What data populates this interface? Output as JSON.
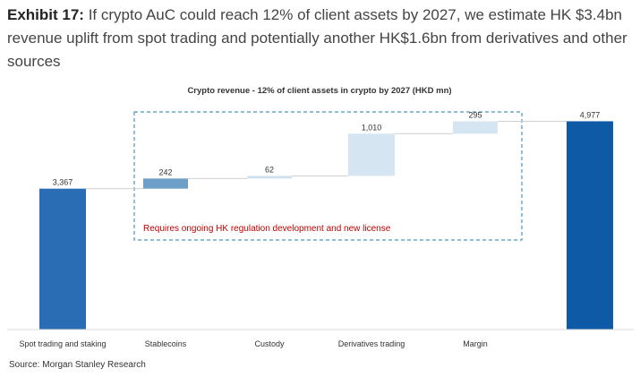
{
  "exhibit": {
    "label": "Exhibit 17:",
    "text": "If crypto AuC could reach 12% of client assets by 2027, we estimate HK $3.4bn revenue uplift from spot trading and potentially another HK$1.6bn from derivatives and other sources"
  },
  "chart_data": {
    "type": "bar",
    "subtype": "waterfall",
    "title": "Crypto revenue - 12% of client assets in crypto by 2027 (HKD mn)",
    "categories": [
      "Spot trading and staking",
      "Stablecoins",
      "Custody",
      "Derivatives trading",
      "Margin",
      ""
    ],
    "value_labels": [
      "3,367",
      "242",
      "62",
      "1,010",
      "295",
      "4,977"
    ],
    "bars": [
      {
        "category": "Spot trading and staking",
        "kind": "total",
        "start": 0,
        "value": 3367,
        "color": "#2a6db5"
      },
      {
        "category": "Stablecoins",
        "kind": "increment",
        "start": 3367,
        "value": 242,
        "color": "#6e9fc9"
      },
      {
        "category": "Custody",
        "kind": "increment",
        "start": 3609,
        "value": 62,
        "color": "#cfe0ef"
      },
      {
        "category": "Derivatives trading",
        "kind": "increment",
        "start": 3671,
        "value": 1010,
        "color": "#d6e5f2"
      },
      {
        "category": "Margin",
        "kind": "increment",
        "start": 4681,
        "value": 295,
        "color": "#d6e5f2"
      },
      {
        "category": "",
        "kind": "total",
        "start": 0,
        "value": 4977,
        "color": "#0f5aa6"
      }
    ],
    "ylim": [
      0,
      5350
    ],
    "xlabel": "",
    "ylabel": "",
    "annotation": {
      "text": "Requires ongoing HK regulation development and new license",
      "color": "#c00000"
    }
  },
  "source": "Source: Morgan Stanley Research"
}
